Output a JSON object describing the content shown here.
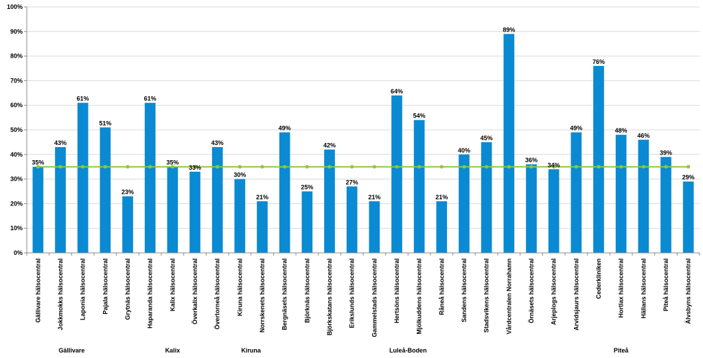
{
  "chart_data": {
    "type": "bar",
    "ylim": [
      0,
      100
    ],
    "y_ticks": [
      "0%",
      "10%",
      "20%",
      "30%",
      "40%",
      "50%",
      "60%",
      "70%",
      "80%",
      "90%",
      "100%"
    ],
    "grid": true,
    "colors": {
      "bar": "#0a8ad2",
      "reference_line": "#8dc63f",
      "grid": "#d9d9d9",
      "axis": "#888888"
    },
    "categories": [
      "Gällivare hälsocentral",
      "Jokkmokks hälsocentral",
      "Laponia hälsocentral",
      "Pajala hälsocentral",
      "Grytnäs hälsocentral",
      "Haparanda hälsocentral",
      "Kalix hälsocentral",
      "Överkalix hälsocentral",
      "Övertorneå hälsocentral",
      "Kiruna hälsocentral",
      "Norrskenets hälsocentral",
      "Bergnäsets hälsocentral",
      "Björknäs hälsocentral",
      "Björkskatans hälsocentral",
      "Erikslunds hälsocentral",
      "Gammelstads hälsocentral",
      "Hertsöns hälsocentral",
      "Mjölkuddens hälsocentral",
      "Råneå hälsocentral",
      "Sandens hälsocentral",
      "Stadsvikens hälsocentral",
      "Vårdcentralen Norrahamn",
      "Örnäsets hälsocentral",
      "Arjeplogs hälsocentral",
      "Arvidsjaurs hälsocentral",
      "Cederkliniken",
      "Hortlax hälsocentral",
      "Hällans hälsocentral",
      "Piteå hälsocentral",
      "Älvsbyns hälsocentral"
    ],
    "values": [
      35,
      43,
      61,
      51,
      23,
      61,
      35,
      33,
      43,
      30,
      21,
      49,
      25,
      42,
      27,
      21,
      64,
      54,
      21,
      40,
      45,
      89,
      36,
      34,
      49,
      76,
      48,
      46,
      39,
      29
    ],
    "data_labels": [
      "35%",
      "43%",
      "61%",
      "51%",
      "23%",
      "61%",
      "35%",
      "33%",
      "43%",
      "30%",
      "21%",
      "49%",
      "25%",
      "42%",
      "27%",
      "21%",
      "64%",
      "54%",
      "21%",
      "40%",
      "45%",
      "89%",
      "36%",
      "34%",
      "49%",
      "76%",
      "48%",
      "46%",
      "39%",
      "29%"
    ],
    "reference_line": {
      "value": 35
    },
    "groups": [
      {
        "label": "Gällivare",
        "start": 0,
        "end": 3
      },
      {
        "label": "Kalix",
        "start": 4,
        "end": 8
      },
      {
        "label": "Kiruna",
        "start": 9,
        "end": 10
      },
      {
        "label": "Luleå-Boden",
        "start": 11,
        "end": 22
      },
      {
        "label": "Piteå",
        "start": 23,
        "end": 29
      }
    ]
  }
}
